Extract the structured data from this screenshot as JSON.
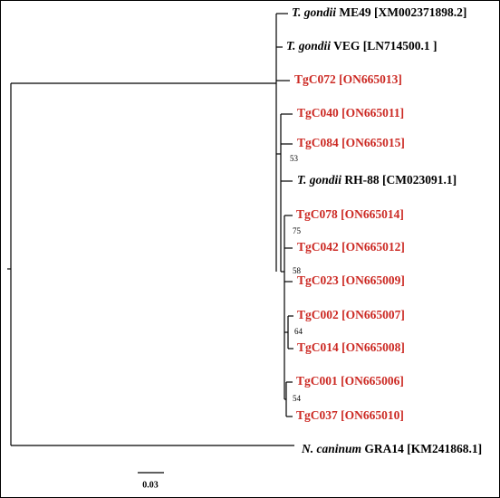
{
  "tree": {
    "leaves": [
      {
        "species": "T. gondii",
        "label": "ME49 [XM002371898.2]"
      },
      {
        "species": "T. gondii",
        "label": "VEG [LN714500.1 ]"
      },
      {
        "label": "TgC072 [ON665013]"
      },
      {
        "label": "TgC040 [ON665011]"
      },
      {
        "label": "TgC084 [ON665015]"
      },
      {
        "species": "T. gondii",
        "label": "RH-88 [CM023091.1]"
      },
      {
        "label": "TgC078 [ON665014]"
      },
      {
        "label": "TgC042 [ON665012]"
      },
      {
        "label": "TgC023 [ON665009]"
      },
      {
        "label": "TgC002 [ON665007]"
      },
      {
        "label": "TgC014 [ON665008]"
      },
      {
        "label": "TgC001 [ON665006]"
      },
      {
        "label": "TgC037 [ON665010]"
      },
      {
        "species": "N. caninum",
        "label": "GRA14 [KM241868.1]"
      }
    ],
    "bootstrap": [
      "53",
      "75",
      "58",
      "64",
      "54"
    ],
    "scale_bar": "0.03"
  }
}
